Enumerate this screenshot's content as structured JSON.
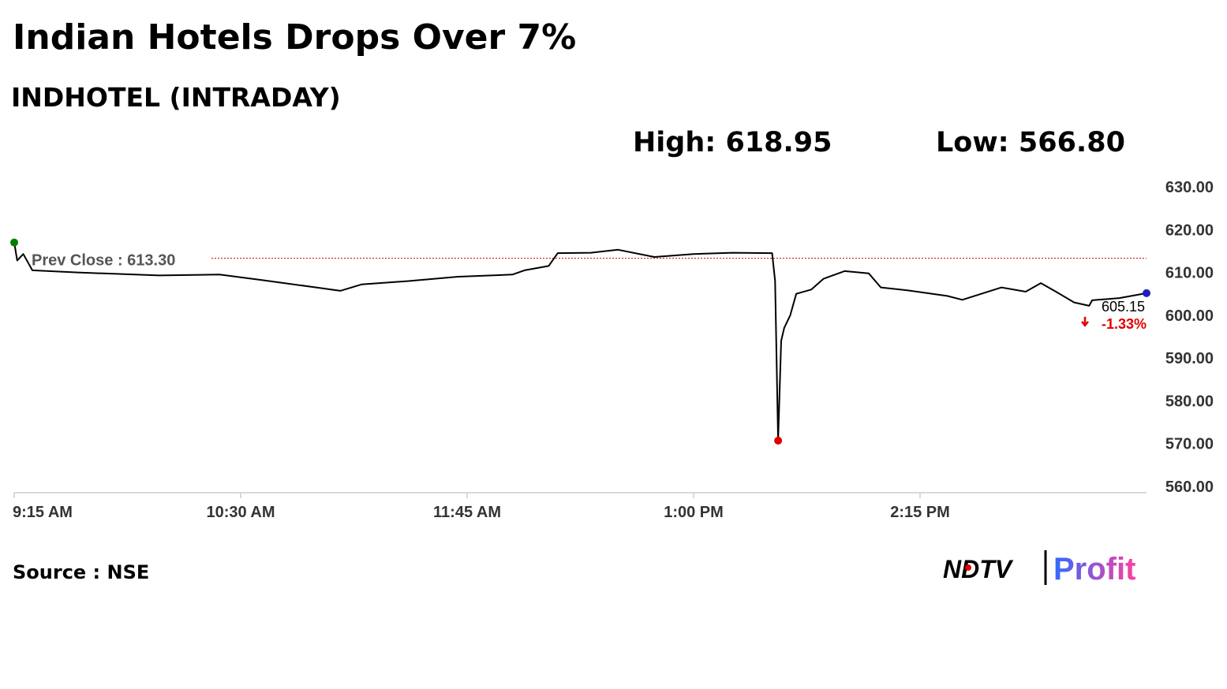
{
  "chart_data": {
    "type": "line",
    "title": "Indian Hotels Drops Over 7%",
    "subtitle": "INDHOTEL (INTRADAY)",
    "high_label": "High: 618.95",
    "low_label": "Low: 566.80",
    "source": "Source : NSE",
    "logo": {
      "left": "NDTV",
      "right": "Profit"
    },
    "color": "#000000",
    "x": [
      555,
      556,
      558,
      561,
      576,
      603,
      623,
      637,
      655,
      663,
      670,
      686,
      702,
      720,
      724,
      732,
      735,
      746,
      755,
      767,
      780,
      793,
      806,
      807,
      808,
      809,
      810,
      812,
      814,
      819,
      823,
      830,
      838,
      842,
      851,
      864,
      869,
      882,
      890,
      895,
      900,
      906,
      911,
      912,
      921,
      930
    ],
    "values": [
      617,
      612.8,
      614.3,
      610.5,
      610,
      609.3,
      609.5,
      608.2,
      606.5,
      605.7,
      607.2,
      608,
      609,
      609.5,
      610.5,
      611.5,
      614.5,
      614.6,
      615.3,
      613.6,
      614.3,
      614.6,
      614.5,
      608,
      570.7,
      594,
      597,
      600,
      605,
      606,
      608.5,
      610.3,
      609.8,
      606.5,
      605.8,
      604.5,
      603.6,
      606.5,
      605.5,
      607.5,
      605.5,
      603,
      602.2,
      603.5,
      604,
      605.15
    ],
    "last_label": "605.15",
    "change_label": "-1.33%",
    "change_color": "#e00000",
    "marker_colors": {
      "first": "#008000",
      "low": "#e00000",
      "last": "#1f1fbf"
    },
    "prev_close": {
      "value": 613.3,
      "label": "Prev Close : 613.30",
      "color": "#c00000"
    },
    "xlim": [
      555,
      930
    ],
    "xticks": [
      {
        "value": 555,
        "label": "9:15 AM"
      },
      {
        "value": 630,
        "label": "10:30 AM"
      },
      {
        "value": 705,
        "label": "11:45 AM"
      },
      {
        "value": 780,
        "label": "1:00 PM"
      },
      {
        "value": 855,
        "label": "2:15 PM"
      }
    ],
    "ylim": [
      560,
      630
    ],
    "yticks": [
      {
        "value": 560,
        "label": "560.00"
      },
      {
        "value": 570,
        "label": "570.00"
      },
      {
        "value": 580,
        "label": "580.00"
      },
      {
        "value": 590,
        "label": "590.00"
      },
      {
        "value": 600,
        "label": "600.00"
      },
      {
        "value": 610,
        "label": "610.00"
      },
      {
        "value": 620,
        "label": "620.00"
      },
      {
        "value": 630,
        "label": "630.00"
      }
    ]
  }
}
